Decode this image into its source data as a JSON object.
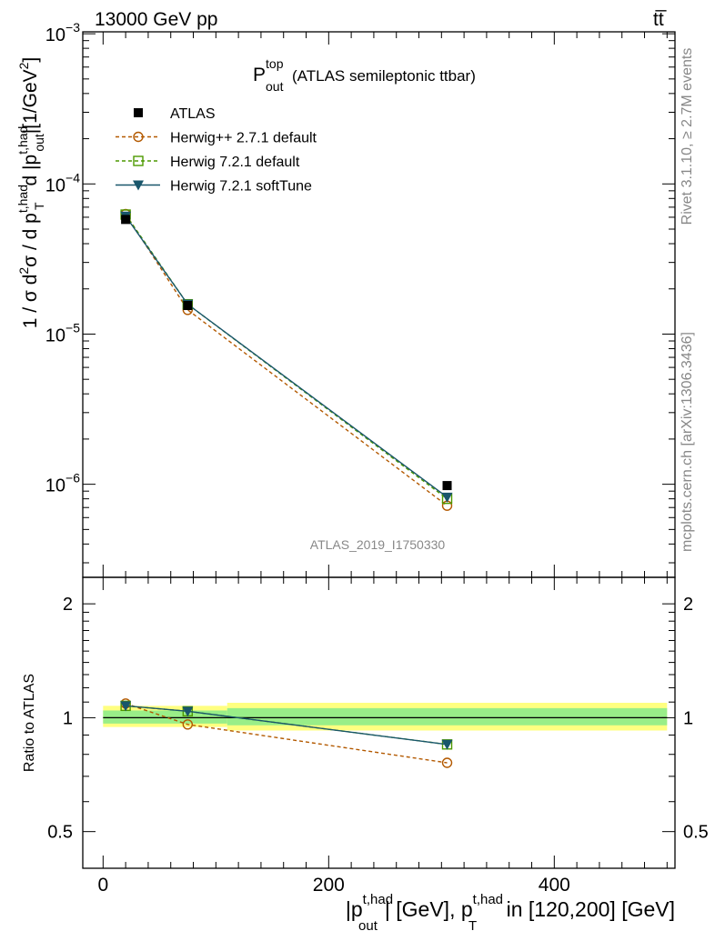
{
  "header": {
    "energy_label": "13000 GeV pp",
    "process_main": "tt",
    "process_bar": "̅"
  },
  "side_labels": {
    "rivet": "Rivet 3.1.10, ≥ 2.7M events",
    "mcplots": "mcplots.cern.ch [arXiv:1306.3436]"
  },
  "analysis_id": "ATLAS_2019_I1750330",
  "title": {
    "main": "P",
    "sup": "top",
    "sub": "out",
    "rest": "(ATLAS semileptonic ttbar)"
  },
  "y_axis_label": {
    "p1": "1 / σ d",
    "p1_sup": "2",
    "p2": "σ / d p",
    "p2_sup": "t,had",
    "p2_sub": "T",
    "p3": "d |p",
    "p3_sup": "t,had",
    "p3_sub": "out",
    "p4": "|[1/GeV",
    "p4_sup": "2",
    "p5": "]"
  },
  "x_axis_label": {
    "p1": "|p",
    "p1_sup": "t,had",
    "p1_sub": "out",
    "p2": "| [GeV], p",
    "p2_sup": "t,had",
    "p2_sub": "T",
    "p3": " in [120,200] [GeV]"
  },
  "ratio_label": "Ratio to ATLAS",
  "legend": [
    {
      "name": "ATLAS",
      "marker": "filled-square",
      "color": "#000000"
    },
    {
      "name": "Herwig++ 2.7.1 default",
      "marker": "open-circle",
      "color": "#b35900"
    },
    {
      "name": "Herwig 7.2.1 default",
      "marker": "open-square",
      "color": "#4d9900"
    },
    {
      "name": "Herwig 7.2.1 softTune",
      "marker": "filled-triangle-down",
      "color": "#19566b"
    }
  ],
  "chart_data": {
    "type": "line",
    "x": [
      20,
      75,
      305
    ],
    "xlim": [
      -18,
      507
    ],
    "xticks": [
      {
        "v": 0,
        "label": "0"
      },
      {
        "v": 200,
        "label": "200"
      },
      {
        "v": 400,
        "label": "400"
      }
    ],
    "main": {
      "yscale": "log",
      "ylim": [
        2.4e-07,
        0.00103
      ],
      "yticks": [
        {
          "exp": -3,
          "label": "10",
          "sup": "−3"
        },
        {
          "exp": -4,
          "label": "10",
          "sup": "−4"
        },
        {
          "exp": -5,
          "label": "10",
          "sup": "−5"
        },
        {
          "exp": -6,
          "label": "10",
          "sup": "−6"
        }
      ],
      "series": [
        {
          "name": "ATLAS",
          "values": [
            5.8e-05,
            1.55e-05,
            9.8e-07
          ]
        },
        {
          "name": "Herwig++ 2.7.1 default",
          "values": [
            6.3e-05,
            1.45e-05,
            7.2e-07
          ]
        },
        {
          "name": "Herwig 7.2.1 default",
          "values": [
            6.25e-05,
            1.58e-05,
            8e-07
          ]
        },
        {
          "name": "Herwig 7.2.1 softTune",
          "values": [
            6.1e-05,
            1.58e-05,
            8.2e-07
          ]
        }
      ]
    },
    "ratio": {
      "yscale": "log",
      "ylim": [
        0.4,
        2.35
      ],
      "yticks": [
        {
          "v": 0.5,
          "label": "0.5"
        },
        {
          "v": 1,
          "label": "1"
        },
        {
          "v": 2,
          "label": "2"
        }
      ],
      "bands": [
        {
          "x0": 0,
          "x1": 110,
          "outer": [
            0.945,
            1.075
          ],
          "inner": [
            0.965,
            1.045
          ]
        },
        {
          "x0": 110,
          "x1": 500,
          "outer": [
            0.925,
            1.095
          ],
          "inner": [
            0.955,
            1.06
          ]
        }
      ],
      "series": [
        {
          "name": "Herwig++ 2.7.1 default",
          "values": [
            1.09,
            0.96,
            0.76
          ]
        },
        {
          "name": "Herwig 7.2.1 default",
          "values": [
            1.075,
            1.04,
            0.85
          ]
        },
        {
          "name": "Herwig 7.2.1 softTune",
          "values": [
            1.075,
            1.04,
            0.85
          ]
        }
      ]
    }
  }
}
